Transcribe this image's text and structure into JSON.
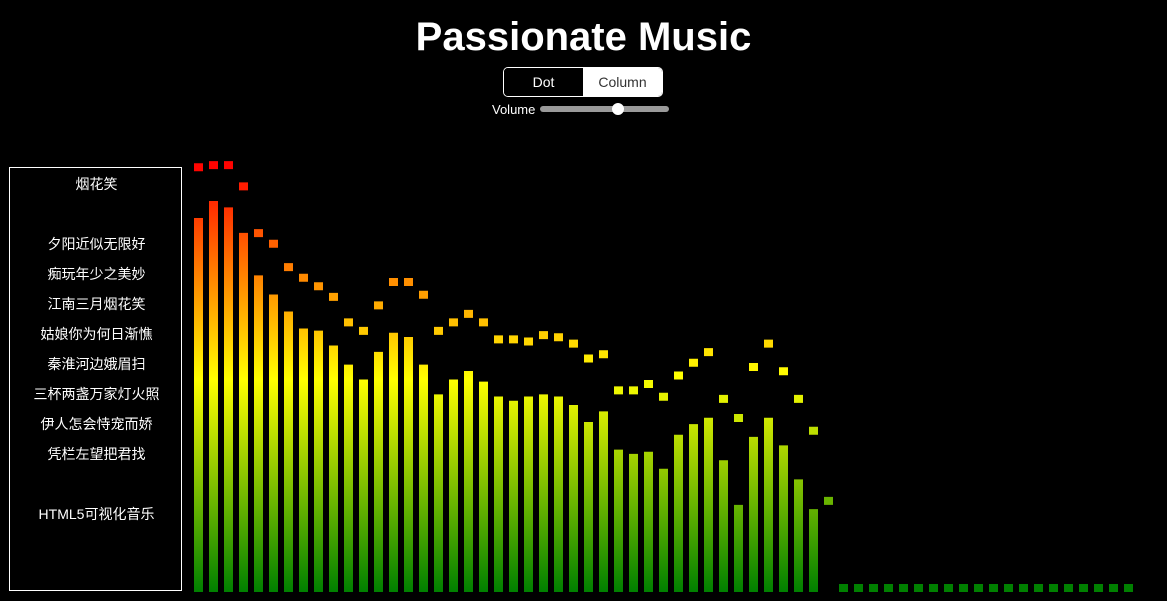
{
  "header": {
    "title": "Passionate Music"
  },
  "mode_toggle": {
    "options": [
      "Dot",
      "Column"
    ],
    "selected": "Dot"
  },
  "volume": {
    "label": "Volume",
    "value": 0.6
  },
  "playlist": {
    "songs": [
      "烟花笑",
      "",
      "夕阳近似无限好",
      "痴玩年少之美妙",
      "江南三月烟花笑",
      "姑娘你为何日渐憔",
      "秦淮河边娥眉扫",
      "三杯两盏万家灯火照",
      "伊人怎会恃宠而娇",
      "凭栏左望把君找",
      "",
      "HTML5可视化音乐"
    ]
  },
  "visualizer": {
    "colors": {
      "top": "#ff0000",
      "middle": "#ffff00",
      "bottom": "#008000"
    },
    "bar_levels": [
      0.88,
      0.92,
      0.905,
      0.845,
      0.745,
      0.7,
      0.66,
      0.62,
      0.615,
      0.58,
      0.535,
      0.5,
      0.565,
      0.61,
      0.6,
      0.535,
      0.465,
      0.5,
      0.52,
      0.495,
      0.46,
      0.45,
      0.46,
      0.465,
      0.46,
      0.44,
      0.4,
      0.425,
      0.335,
      0.325,
      0.33,
      0.29,
      0.37,
      0.395,
      0.41,
      0.31,
      0.205,
      0.365,
      0.41,
      0.345,
      0.265,
      0.195,
      0,
      0,
      0,
      0,
      0,
      0,
      0,
      0,
      0,
      0,
      0,
      0,
      0,
      0,
      0,
      0,
      0,
      0,
      0,
      0,
      0
    ],
    "peak_levels": [
      0.99,
      0.995,
      0.995,
      0.945,
      0.835,
      0.81,
      0.755,
      0.73,
      0.71,
      0.685,
      0.625,
      0.605,
      0.665,
      0.72,
      0.72,
      0.69,
      0.605,
      0.625,
      0.645,
      0.625,
      0.585,
      0.585,
      0.58,
      0.595,
      0.59,
      0.575,
      0.54,
      0.55,
      0.465,
      0.465,
      0.48,
      0.45,
      0.5,
      0.53,
      0.555,
      0.445,
      0.4,
      0.52,
      0.575,
      0.51,
      0.445,
      0.37,
      0.205,
      0,
      0,
      0,
      0,
      0,
      0,
      0,
      0,
      0,
      0,
      0,
      0,
      0,
      0,
      0,
      0,
      0,
      0,
      0,
      0
    ]
  }
}
